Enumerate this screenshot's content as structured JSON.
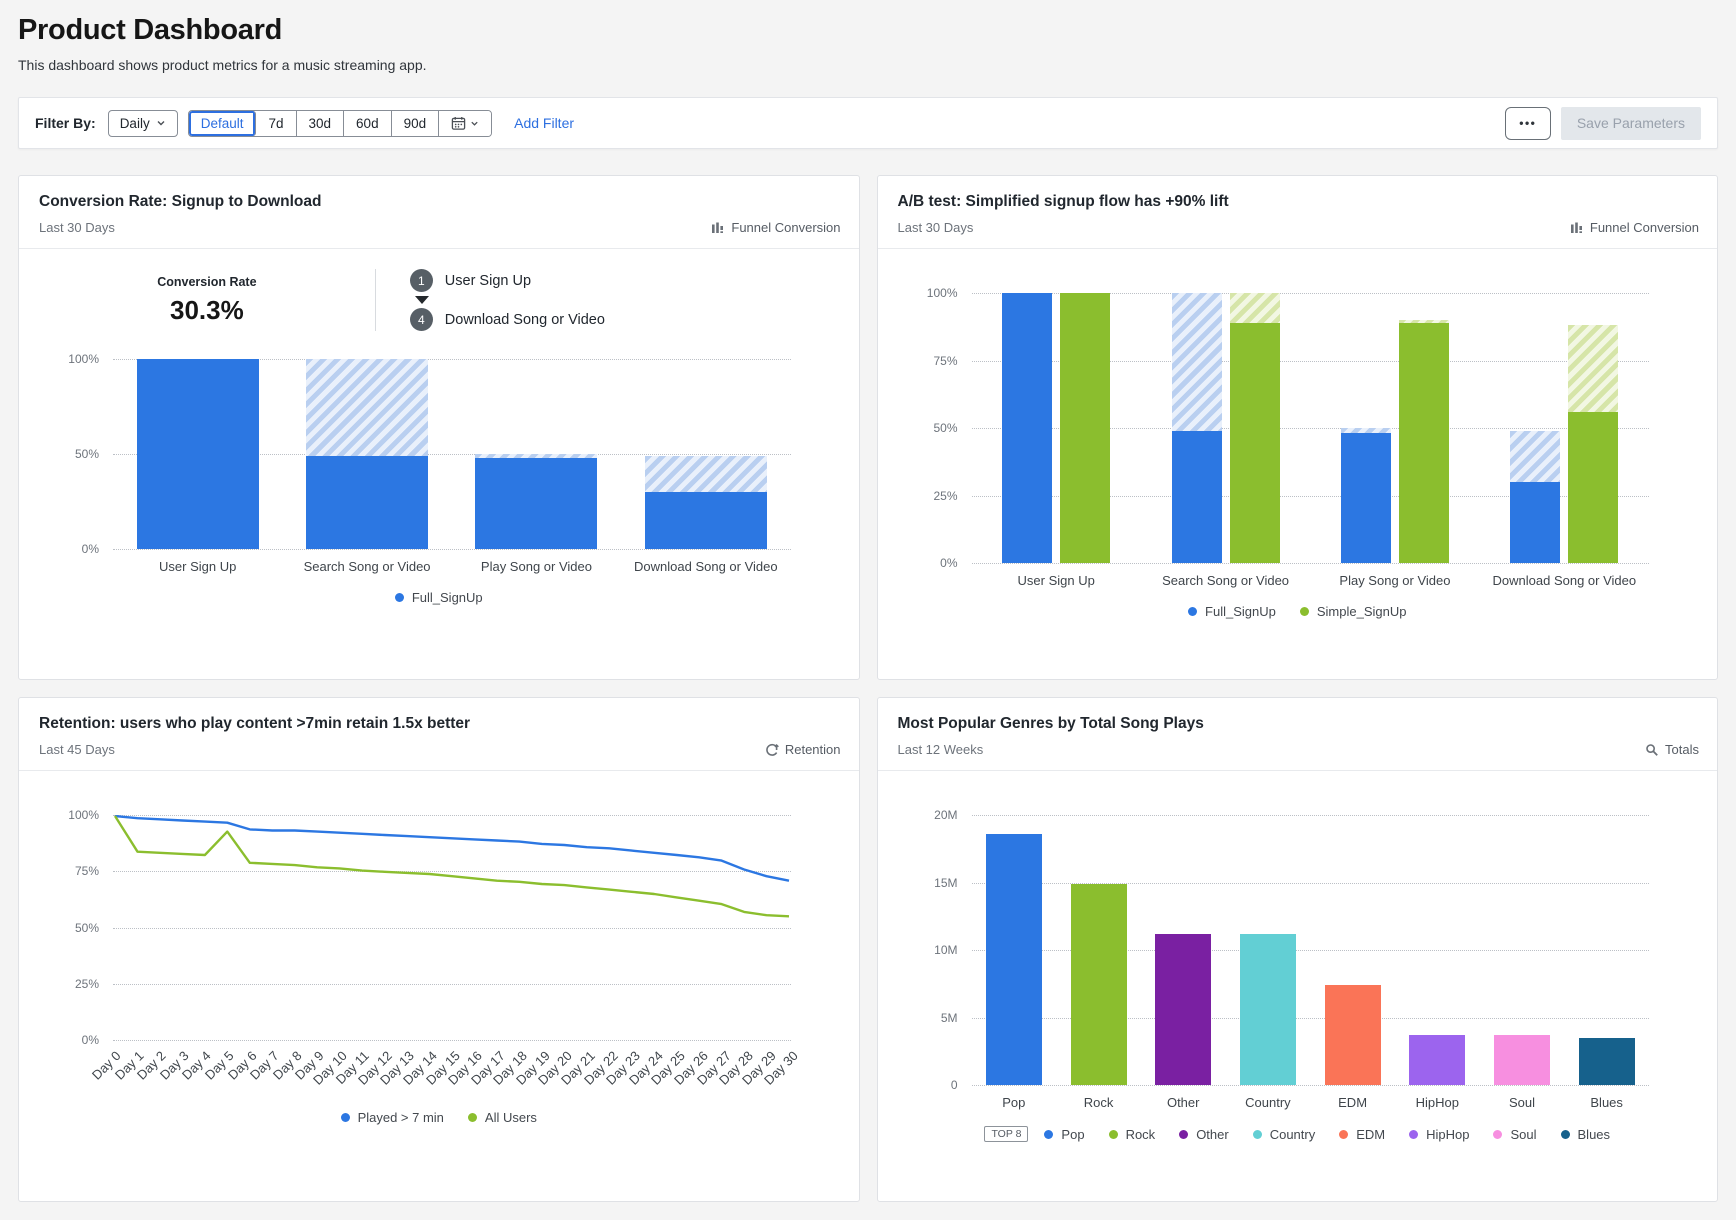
{
  "page": {
    "title": "Product Dashboard",
    "subtitle": "This dashboard shows product metrics for a music streaming app."
  },
  "filter_bar": {
    "label": "Filter By:",
    "granularity_button": {
      "label": "Daily"
    },
    "presets": [
      {
        "label": "Default",
        "selected": true
      },
      {
        "label": "7d"
      },
      {
        "label": "30d"
      },
      {
        "label": "60d"
      },
      {
        "label": "90d"
      }
    ],
    "add_filter_label": "Add Filter",
    "overflow_label": "•••",
    "save_label": "Save Parameters"
  },
  "colors": {
    "blue": "#2c77e2",
    "green": "#8bbe2e",
    "link_blue": "#2d6fe0",
    "purple": "#7a20a2",
    "teal": "#62cfd4",
    "coral": "#fa7457",
    "violet": "#9c64ee",
    "pink": "#f78fe0",
    "dark_blue": "#16618c"
  },
  "panels": [
    {
      "title": "Conversion Rate: Signup to Download",
      "subtitle": "Last 30 Days",
      "badge": {
        "icon": "funnel-conversion-icon",
        "label": "Funnel Conversion"
      },
      "kpi": {
        "label": "Conversion Rate",
        "value": "30.3%"
      },
      "steps": [
        {
          "num": "1",
          "label": "User Sign Up"
        },
        {
          "num": "4",
          "label": "Download Song or Video"
        }
      ]
    },
    {
      "title": "A/B test: Simplified signup flow has +90% lift",
      "subtitle": "Last 30 Days",
      "badge": {
        "icon": "funnel-conversion-icon",
        "label": "Funnel Conversion"
      }
    },
    {
      "title": "Retention: users who play content >7min retain 1.5x better",
      "subtitle": "Last 45 Days",
      "badge": {
        "icon": "retention-icon",
        "label": "Retention"
      }
    },
    {
      "title": "Most Popular Genres by Total Song Plays",
      "subtitle": "Last 12 Weeks",
      "badge": {
        "icon": "totals-icon",
        "label": "Totals"
      }
    }
  ],
  "chart_data": [
    {
      "id": "funnel",
      "type": "bar",
      "variant": "funnel-hatched",
      "title": "Conversion Rate: Signup to Download",
      "categories": [
        "User Sign Up",
        "Search Song or Video",
        "Play Song or Video",
        "Download Song or Video"
      ],
      "series": [
        {
          "name": "Full_SignUp",
          "color": "#2c77e2",
          "solid_pct": [
            100,
            49,
            48,
            30
          ],
          "hatch_top_pct": [
            100,
            100,
            50,
            49
          ]
        }
      ],
      "ylim": [
        0,
        100
      ],
      "yticks": [
        100,
        50,
        0
      ],
      "ytick_labels": [
        "100%",
        "50%",
        "0%"
      ],
      "grid": true,
      "legend_position": "bottom"
    },
    {
      "id": "abtest",
      "type": "bar",
      "variant": "grouped-hatched",
      "title": "A/B test: Simplified signup flow has +90% lift",
      "categories": [
        "User Sign Up",
        "Search Song or Video",
        "Play Song or Video",
        "Download Song or Video"
      ],
      "series": [
        {
          "name": "Full_SignUp",
          "color": "#2c77e2",
          "solid_pct": [
            100,
            49,
            48,
            30
          ],
          "hatch_top_pct": [
            100,
            100,
            50,
            49
          ]
        },
        {
          "name": "Simple_SignUp",
          "color": "#8bbe2e",
          "solid_pct": [
            100,
            89,
            89,
            56
          ],
          "hatch_top_pct": [
            100,
            100,
            90,
            88
          ]
        }
      ],
      "ylim": [
        0,
        100
      ],
      "yticks": [
        100,
        75,
        50,
        25,
        0
      ],
      "ytick_labels": [
        "100%",
        "75%",
        "50%",
        "25%",
        "0%"
      ],
      "grid": true,
      "legend_position": "bottom"
    },
    {
      "id": "retention",
      "type": "line",
      "title": "Retention: users who play content >7min retain 1.5x better",
      "x": [
        "Day 0",
        "Day 1",
        "Day 2",
        "Day 3",
        "Day 4",
        "Day 5",
        "Day 6",
        "Day 7",
        "Day 8",
        "Day 9",
        "Day 10",
        "Day 11",
        "Day 12",
        "Day 13",
        "Day 14",
        "Day 15",
        "Day 16",
        "Day 17",
        "Day 18",
        "Day 19",
        "Day 20",
        "Day 21",
        "Day 22",
        "Day 23",
        "Day 24",
        "Day 25",
        "Day 26",
        "Day 27",
        "Day 28",
        "Day 29",
        "Day 30"
      ],
      "series": [
        {
          "name": "Played > 7 min",
          "color": "#2c77e2",
          "values": [
            100,
            99,
            98.5,
            98,
            97.5,
            97,
            94,
            93.5,
            93.5,
            93,
            92.5,
            92,
            91.5,
            91,
            90.5,
            90,
            89.5,
            89,
            88.5,
            87.5,
            87,
            86,
            85.5,
            84.5,
            83.5,
            82.5,
            81.5,
            80,
            76,
            73,
            71
          ]
        },
        {
          "name": "All Users",
          "color": "#8bbe2e",
          "values": [
            100,
            84,
            83.5,
            83,
            82.5,
            93,
            79,
            78.5,
            78,
            77,
            76.5,
            75.5,
            75,
            74.5,
            74,
            73,
            72,
            71,
            70.5,
            69.5,
            69,
            68,
            67,
            66,
            65,
            63.5,
            62,
            60.5,
            57,
            55.5,
            55
          ]
        }
      ],
      "ylim": [
        0,
        100
      ],
      "yticks": [
        100,
        75,
        50,
        25,
        0
      ],
      "ytick_labels": [
        "100%",
        "75%",
        "50%",
        "25%",
        "0%"
      ],
      "grid": true,
      "legend_position": "bottom"
    },
    {
      "id": "genres",
      "type": "bar",
      "variant": "categorical",
      "title": "Most Popular Genres by Total Song Plays",
      "categories": [
        "Pop",
        "Rock",
        "Other",
        "Country",
        "EDM",
        "HipHop",
        "Soul",
        "Blues"
      ],
      "values": [
        18.6,
        14.9,
        11.2,
        11.2,
        7.4,
        3.7,
        3.7,
        3.5
      ],
      "unit": "M",
      "bar_colors": [
        "#2c77e2",
        "#8bbe2e",
        "#7a20a2",
        "#62cfd4",
        "#fa7457",
        "#9c64ee",
        "#f78fe0",
        "#16618c"
      ],
      "ylim": [
        0,
        20
      ],
      "yticks": [
        20,
        15,
        10,
        5,
        0
      ],
      "ytick_labels": [
        "20M",
        "15M",
        "10M",
        "5M",
        "0"
      ],
      "grid": true,
      "legend_prefix": "TOP 8",
      "legend": [
        {
          "label": "Pop",
          "color": "#2c77e2"
        },
        {
          "label": "Rock",
          "color": "#8bbe2e"
        },
        {
          "label": "Other",
          "color": "#7a20a2"
        },
        {
          "label": "Country",
          "color": "#62cfd4"
        },
        {
          "label": "EDM",
          "color": "#fa7457"
        },
        {
          "label": "HipHop",
          "color": "#9c64ee"
        },
        {
          "label": "Soul",
          "color": "#f78fe0"
        },
        {
          "label": "Blues",
          "color": "#16618c"
        }
      ],
      "legend_position": "bottom"
    }
  ]
}
